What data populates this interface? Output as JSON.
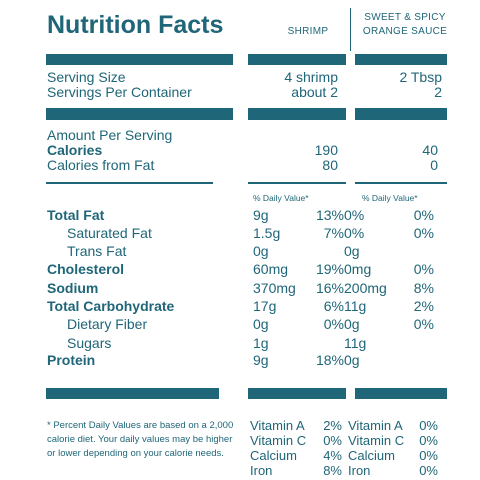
{
  "title": "Nutrition Facts",
  "columns": {
    "shrimp": "SHRIMP",
    "sauce_line1": "SWEET & SPICY",
    "sauce_line2": "ORANGE SAUCE"
  },
  "serving": {
    "size_label": "Serving Size",
    "size_shrimp": "4 shrimp",
    "size_sauce": "2 Tbsp",
    "per_container_label": "Servings Per Container",
    "per_container_shrimp": "about 2",
    "per_container_sauce": "2"
  },
  "calories": {
    "amount_per_serving": "Amount Per Serving",
    "calories_label": "Calories",
    "calories_shrimp": "190",
    "calories_sauce": "40",
    "from_fat_label": "Calories from Fat",
    "from_fat_shrimp": "80",
    "from_fat_sauce": "0"
  },
  "dv_header": {
    "shrimp": "% Daily Value*",
    "sauce": "% Daily Value*"
  },
  "nutrients": [
    {
      "label": "Total Fat",
      "shrimp_amt": "9g",
      "shrimp_dv": "13%",
      "sauce_amt": "0%",
      "sauce_dv": "0%"
    },
    {
      "label": "Saturated Fat",
      "shrimp_amt": "1.5g",
      "shrimp_dv": "7%",
      "sauce_amt": "0%",
      "sauce_dv": "0%"
    },
    {
      "label": "Trans Fat",
      "shrimp_amt": "0g",
      "shrimp_dv": "",
      "sauce_amt": "0g",
      "sauce_dv": ""
    },
    {
      "label": "Cholesterol",
      "shrimp_amt": "60mg",
      "shrimp_dv": "19%",
      "sauce_amt": "0mg",
      "sauce_dv": "0%"
    },
    {
      "label": "Sodium",
      "shrimp_amt": "370mg",
      "shrimp_dv": "16%",
      "sauce_amt": "200mg",
      "sauce_dv": "8%"
    },
    {
      "label": "Total Carbohydrate",
      "shrimp_amt": "17g",
      "shrimp_dv": "6%",
      "sauce_amt": "11g",
      "sauce_dv": "2%"
    },
    {
      "label": "Dietary Fiber",
      "shrimp_amt": "0g",
      "shrimp_dv": "0%",
      "sauce_amt": "0g",
      "sauce_dv": "0%"
    },
    {
      "label": "Sugars",
      "shrimp_amt": "1g",
      "shrimp_dv": "",
      "sauce_amt": "11g",
      "sauce_dv": ""
    },
    {
      "label": "Protein",
      "shrimp_amt": "9g",
      "shrimp_dv": "18%",
      "sauce_amt": "0g",
      "sauce_dv": ""
    }
  ],
  "footnote": "* Percent Daily Values are based on a 2,000 calorie diet. Your daily values may be higher or lower depending on your calorie needs.",
  "vitamins": [
    {
      "label": "Vitamin A",
      "shrimp": "2%",
      "sauce": "0%"
    },
    {
      "label": "Vitamin C",
      "shrimp": "0%",
      "sauce": "0%"
    },
    {
      "label": "Calcium",
      "shrimp": "4%",
      "sauce": "0%"
    },
    {
      "label": "Iron",
      "shrimp": "8%",
      "sauce": "0%"
    }
  ],
  "colors": {
    "ink": "#1f6678"
  }
}
